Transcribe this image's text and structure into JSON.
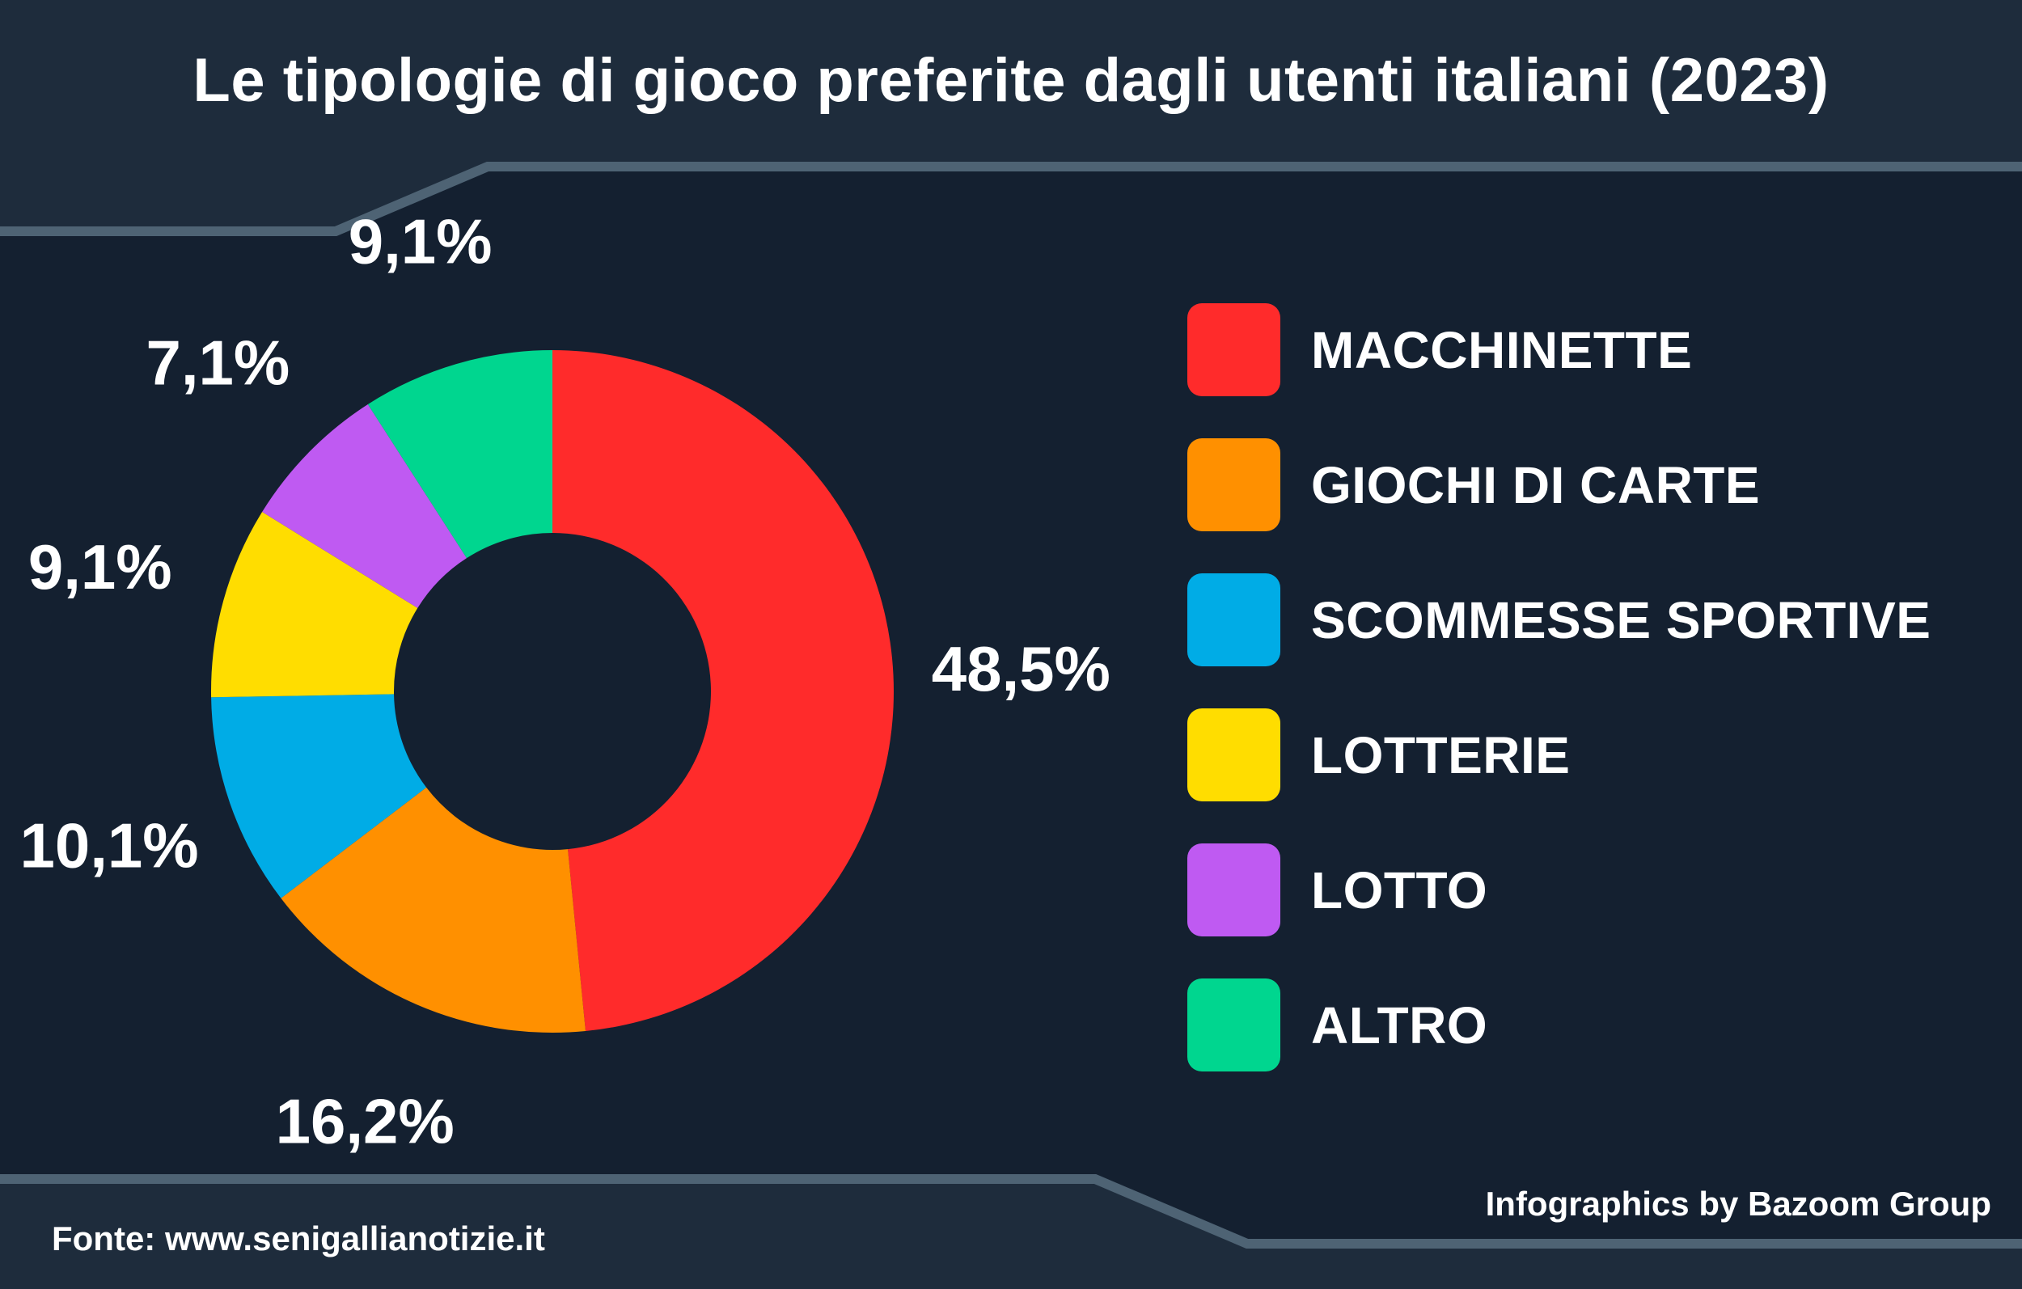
{
  "title": "Le tipologie di gioco preferite dagli utenti italiani (2023)",
  "source": "Fonte: www.senigallianotizie.it",
  "credit": "Infographics by Bazoom Group",
  "theme": {
    "background": "#142030",
    "header_background": "#1e2c3c",
    "divider": "#4e6374",
    "text": "#ffffff"
  },
  "chart_data": {
    "type": "pie",
    "style": "donut",
    "categories": [
      "MACCHINETTE",
      "GIOCHI DI CARTE",
      "SCOMMESSE SPORTIVE",
      "LOTTERIE",
      "LOTTO",
      "ALTRO"
    ],
    "values": [
      48.5,
      16.2,
      10.1,
      9.1,
      7.1,
      9.1
    ],
    "value_labels": [
      "48,5%",
      "16,2%",
      "10,1%",
      "9,1%",
      "7,1%",
      "9,1%"
    ],
    "colors": [
      "#ff2b2b",
      "#ff9000",
      "#00ace6",
      "#ffdd00",
      "#bf5af2",
      "#00d68f"
    ],
    "unit": "%",
    "legend_position": "right"
  }
}
